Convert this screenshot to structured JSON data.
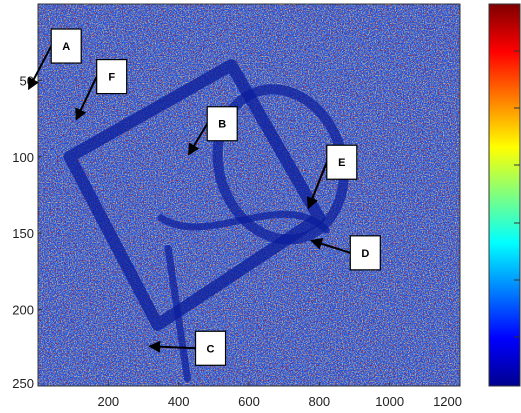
{
  "chart_data": {
    "type": "heatmap",
    "title": "",
    "xlabel": "",
    "ylabel": "",
    "xlim": [
      0,
      1200
    ],
    "ylim": [
      0,
      250
    ],
    "y_reversed": true,
    "x_ticks": [
      {
        "value": 200,
        "label": "200"
      },
      {
        "value": 400,
        "label": "400"
      },
      {
        "value": 600,
        "label": "600"
      },
      {
        "value": 800,
        "label": "800"
      },
      {
        "value": 1000,
        "label": "1000"
      },
      {
        "value": 1200,
        "label": "1200"
      }
    ],
    "y_ticks": [
      {
        "value": 50,
        "label": "50"
      },
      {
        "value": 100,
        "label": "100"
      },
      {
        "value": 150,
        "label": "150"
      },
      {
        "value": 200,
        "label": "200"
      },
      {
        "value": 250,
        "label": "250"
      }
    ],
    "colormap": "jet",
    "colorbar_tick_labels": [],
    "annotations": [
      {
        "label": "A",
        "x": -25,
        "y": 55
      },
      {
        "label": "F",
        "x": 110,
        "y": 75
      },
      {
        "label": "B",
        "x": 430,
        "y": 98
      },
      {
        "label": "E",
        "x": 770,
        "y": 133
      },
      {
        "label": "D",
        "x": 780,
        "y": 155
      },
      {
        "label": "C",
        "x": 320,
        "y": 224
      }
    ],
    "features": [
      {
        "kind": "rectangle",
        "corners": [
          [
            90,
            100
          ],
          [
            550,
            40
          ],
          [
            800,
            140
          ],
          [
            340,
            210
          ]
        ]
      },
      {
        "kind": "ellipse",
        "center": [
          690,
          105
        ],
        "rx": 175,
        "ry": 50,
        "rotation_deg": -18
      },
      {
        "kind": "curve",
        "points": [
          [
            350,
            140
          ],
          [
            480,
            160
          ],
          [
            700,
            120
          ],
          [
            820,
            148
          ]
        ]
      },
      {
        "kind": "curve",
        "points": [
          [
            370,
            160
          ],
          [
            390,
            190
          ],
          [
            410,
            220
          ],
          [
            425,
            245
          ]
        ]
      }
    ]
  }
}
